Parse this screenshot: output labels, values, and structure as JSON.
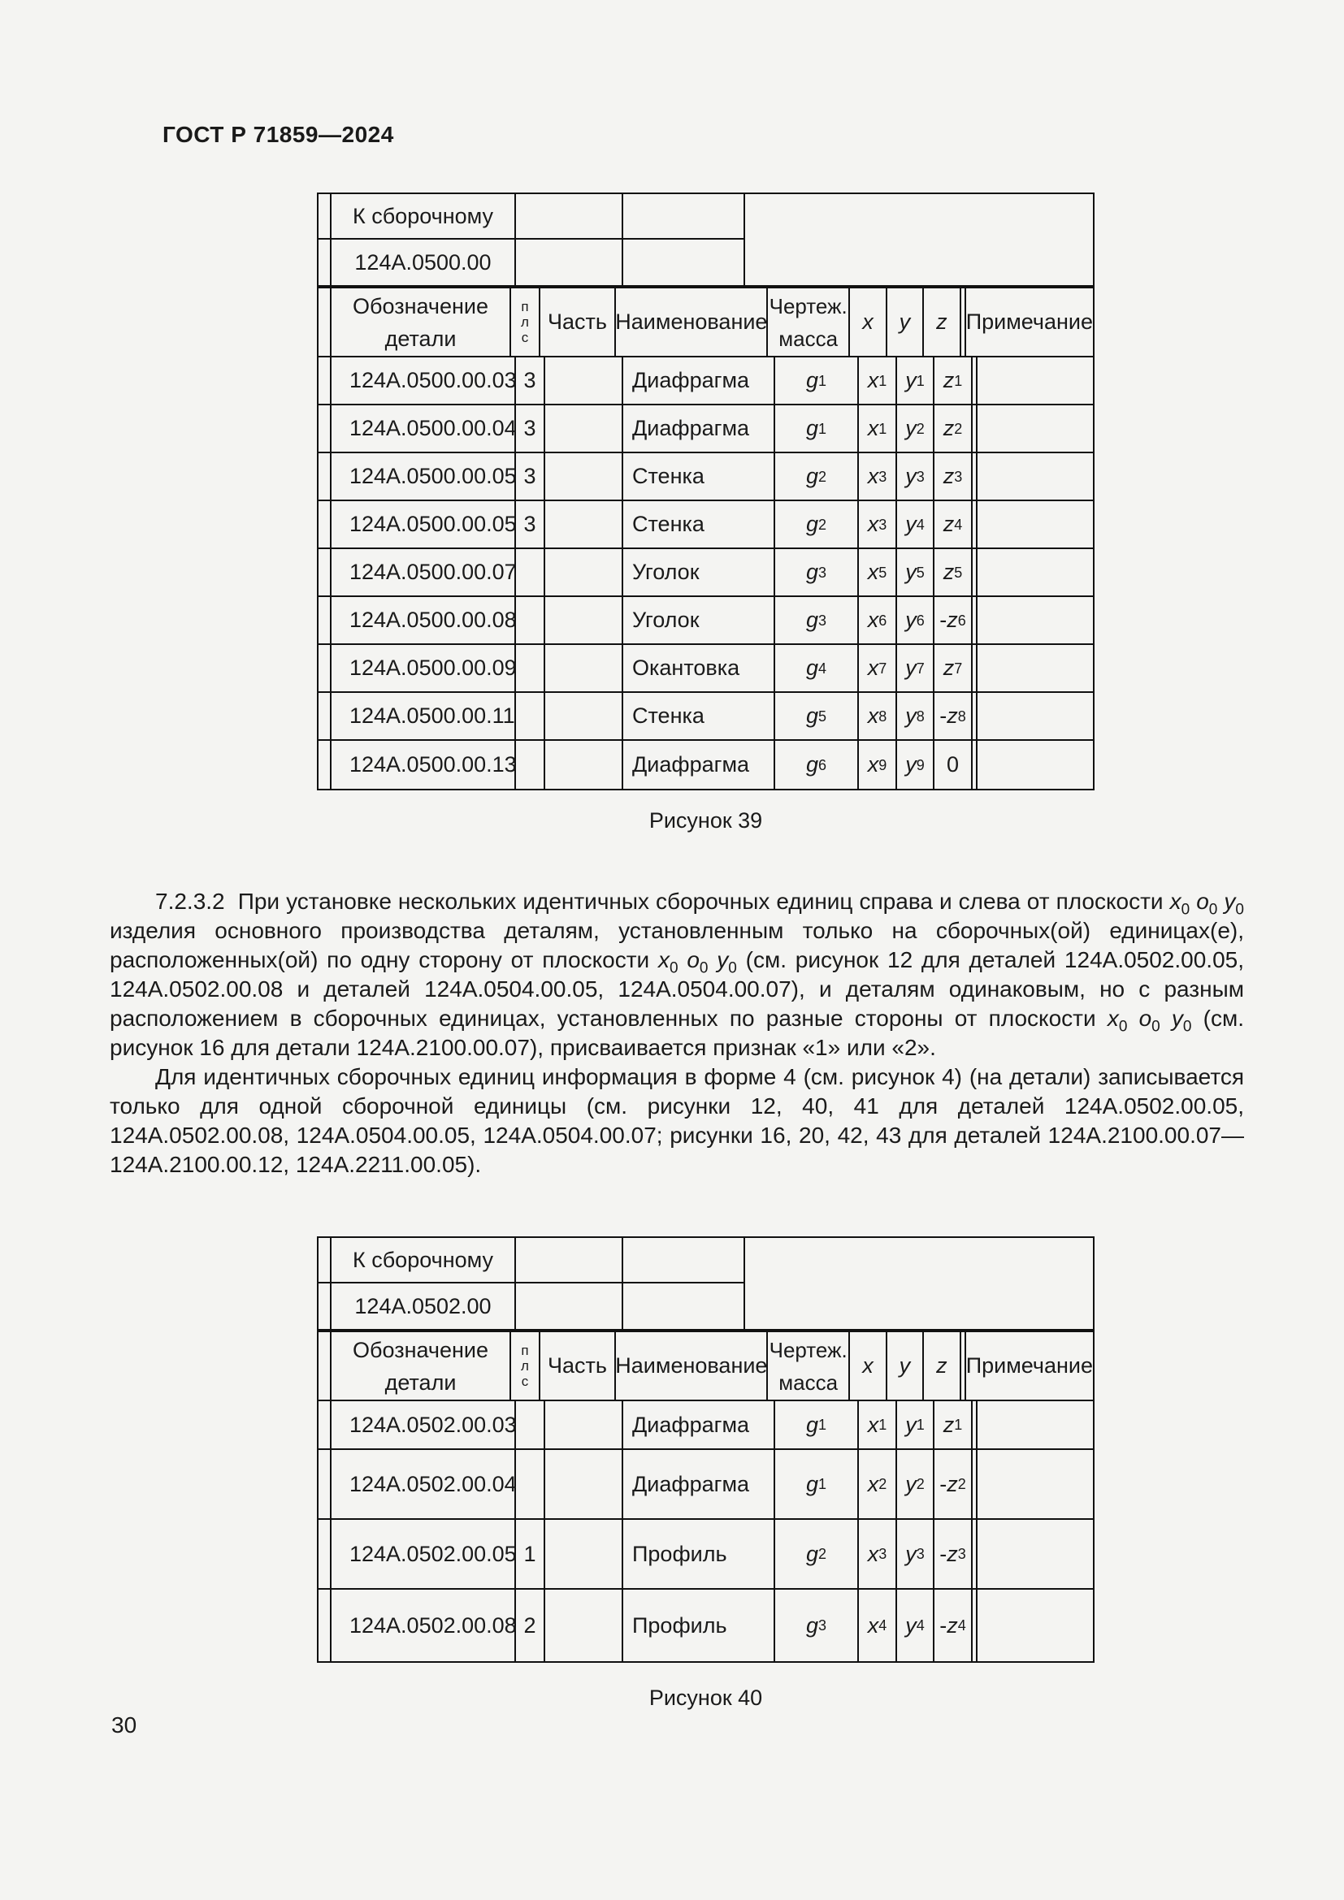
{
  "page": {
    "standard_ref": "ГОСТ Р 71859—2024",
    "page_number": "30"
  },
  "text": {
    "para1_html": "7.2.3.2&nbsp;&nbsp;При установке нескольких идентичных сборочных единиц справа и слева от плоскости <i>x</i><sub>0</sub> <i>o</i><sub>0</sub> <i>y</i><sub>0</sub> изделия основного производства деталям, установленным только на сборочных(ой) единицах(е), расположенных(ой) по одну сторону от плоскости <i>x</i><sub>0</sub> <i>o</i><sub>0</sub> <i>y</i><sub>0</sub> (см. рисунок 12 для деталей 124А.0502.00.05, 124А.0502.00.08 и деталей 124А.0504.00.05, 124А.0504.00.07), и деталям одинаковым, но с разным расположением в сборочных единицах, установленных по разные стороны от плоскости <i>x</i><sub>0</sub> <i>o</i><sub>0</sub> <i>y</i><sub>0</sub> (см. рисунок 16 для детали 124А.2100.00.07), присваивается признак «1» или «2».",
    "para2_html": "Для идентичных сборочных единиц информация в форме 4 (см. рисунок 4) (на детали) записывается только для одной сборочной единицы (см. рисунки 12, 40, 41 для деталей 124А.0502.00.05, 124А.0502.00.08, 124А.0504.00.05, 124А.0504.00.07; рисунки 16, 20, 42, 43 для деталей 124А.2100.00.07—124А.2100.00.12, 124А.2211.00.05)."
  },
  "columns": {
    "designation": "Обозначение детали",
    "plc_letters": [
      "п",
      "л",
      "с"
    ],
    "part": "Часть",
    "name": "Наименование",
    "mass": "Чертеж. масса",
    "x": "x",
    "y": "y",
    "z": "z",
    "note": "Примечание"
  },
  "figure39": {
    "caption": "Рисунок 39",
    "form": {
      "top_label": "К сборочному",
      "assembly_number": "124А.0500.00",
      "rows": [
        {
          "designation": "124А.0500.00.03",
          "plc": "3",
          "part": "",
          "name": "Диафрагма",
          "mass": "<i>g</i><sub>1</sub>",
          "x": "<i>x</i><sub>1</sub>",
          "y": "<i>y</i><sub>1</sub>",
          "z": "<i>z</i><sub>1</sub>",
          "note": ""
        },
        {
          "designation": "124А.0500.00.04",
          "plc": "3",
          "part": "",
          "name": "Диафрагма",
          "mass": "<i>g</i><sub>1</sub>",
          "x": "<i>x</i><sub>1</sub>",
          "y": "<i>y</i><sub>2</sub>",
          "z": "<i>z</i><sub>2</sub>",
          "note": ""
        },
        {
          "designation": "124А.0500.00.05",
          "plc": "3",
          "part": "",
          "name": "Стенка",
          "mass": "<i>g</i><sub>2</sub>",
          "x": "<i>x</i><sub>3</sub>",
          "y": "<i>y</i><sub>3</sub>",
          "z": "<i>z</i><sub>3</sub>",
          "note": ""
        },
        {
          "designation": "124А.0500.00.05",
          "plc": "3",
          "part": "",
          "name": "Стенка",
          "mass": "<i>g</i><sub>2</sub>",
          "x": "<i>x</i><sub>3</sub>",
          "y": "<i>y</i><sub>4</sub>",
          "z": "<i>z</i><sub>4</sub>",
          "note": ""
        },
        {
          "designation": "124А.0500.00.07",
          "plc": "",
          "part": "",
          "name": "Уголок",
          "mass": "<i>g</i><sub>3</sub>",
          "x": "<i>x</i><sub>5</sub>",
          "y": "<i>y</i><sub>5</sub>",
          "z": "<i>z</i><sub>5</sub>",
          "note": ""
        },
        {
          "designation": "124А.0500.00.08",
          "plc": "",
          "part": "",
          "name": "Уголок",
          "mass": "<i>g</i><sub>3</sub>",
          "x": "<i>x</i><sub>6</sub>",
          "y": "<i>y</i><sub>6</sub>",
          "z": "-<i>z</i><sub>6</sub>",
          "note": ""
        },
        {
          "designation": "124А.0500.00.09",
          "plc": "",
          "part": "",
          "name": "Окантовка",
          "mass": "<i>g</i><sub>4</sub>",
          "x": "<i>x</i><sub>7</sub>",
          "y": "<i>y</i><sub>7</sub>",
          "z": "<i>z</i><sub>7</sub>",
          "note": ""
        },
        {
          "designation": "124А.0500.00.11",
          "plc": "",
          "part": "",
          "name": "Стенка",
          "mass": "<i>g</i><sub>5</sub>",
          "x": "<i>x</i><sub>8</sub>",
          "y": "<i>y</i><sub>8</sub>",
          "z": "-<i>z</i><sub>8</sub>",
          "note": ""
        },
        {
          "designation": "124А.0500.00.13",
          "plc": "",
          "part": "",
          "name": "Диафрагма",
          "mass": "<i>g</i><sub>6</sub>",
          "x": "<i>x</i><sub>9</sub>",
          "y": "<i>y</i><sub>9</sub>",
          "z": "0",
          "note": ""
        }
      ]
    }
  },
  "figure40": {
    "caption": "Рисунок 40",
    "form": {
      "top_label": "К сборочному",
      "assembly_number": "124А.0502.00",
      "rows": [
        {
          "designation": "124А.0502.00.03",
          "plc": "",
          "part": "",
          "name": "Диафрагма",
          "mass": "<i>g</i><sub>1</sub>",
          "x": "<i>x</i><sub>1</sub>",
          "y": "<i>y</i><sub>1</sub>",
          "z": "<i>z</i><sub>1</sub>",
          "note": ""
        },
        {
          "designation": "124А.0502.00.04",
          "plc": "",
          "part": "",
          "name": "Диафрагма",
          "mass": "<i>g</i><sub>1</sub>",
          "x": "<i>x</i><sub>2</sub>",
          "y": "<i>y</i><sub>2</sub>",
          "z": "-<i>z</i><sub>2</sub>",
          "note": ""
        },
        {
          "designation": "124А.0502.00.05",
          "plc": "1",
          "part": "",
          "name": "Профиль",
          "mass": "<i>g</i><sub>2</sub>",
          "x": "<i>x</i><sub>3</sub>",
          "y": "<i>y</i><sub>3</sub>",
          "z": "-<i>z</i><sub>3</sub>",
          "note": ""
        },
        {
          "designation": "124А.0502.00.08",
          "plc": "2",
          "part": "",
          "name": "Профиль",
          "mass": "<i>g</i><sub>3</sub>",
          "x": "<i>x</i><sub>4</sub>",
          "y": "<i>y</i><sub>4</sub>",
          "z": "-<i>z</i><sub>4</sub>",
          "note": ""
        }
      ]
    }
  }
}
